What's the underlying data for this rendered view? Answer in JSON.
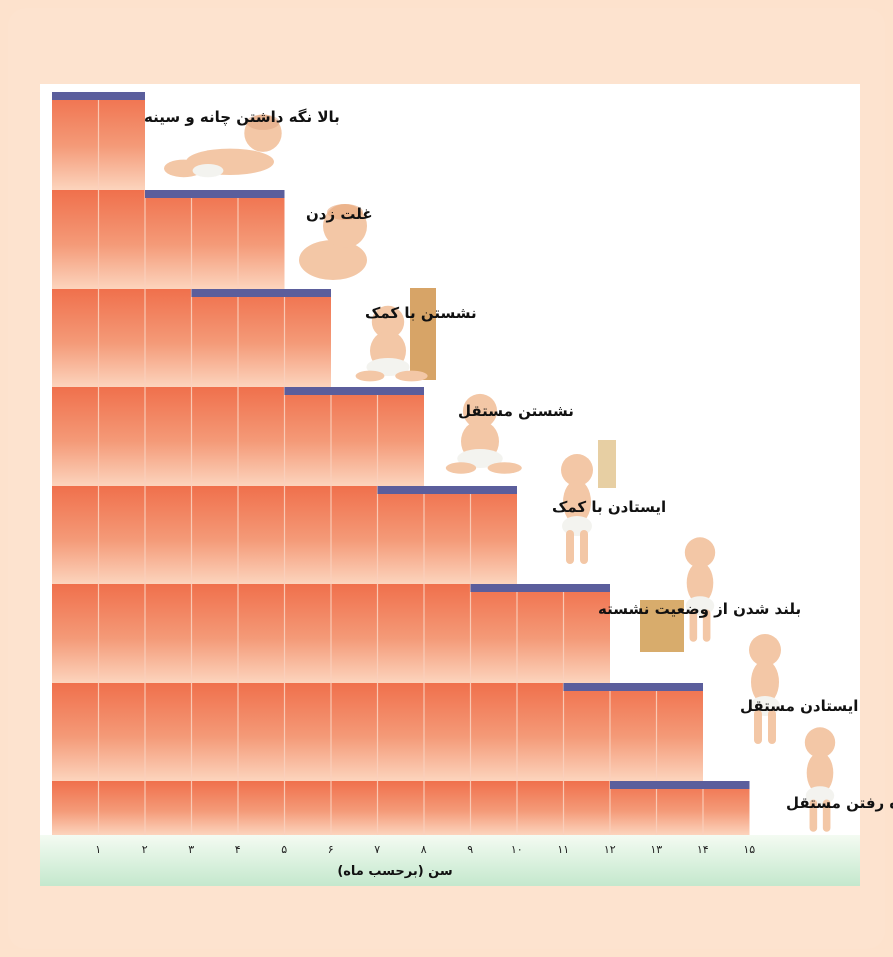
{
  "chart_data": {
    "type": "bar",
    "orientation": "horizontal-range",
    "xlabel": "سن (برحسب ماه)",
    "x_ticks": [
      "۱",
      "۲",
      "۳",
      "۴",
      "۵",
      "۶",
      "۷",
      "۸",
      "۹",
      "۱۰",
      "۱۱",
      "۱۲",
      "۱۳",
      "۱۴",
      "۱۵"
    ],
    "xlim": [
      0,
      15
    ],
    "stages": [
      {
        "label": "بالا نگه داشتن چانه و سینه",
        "start": 0,
        "end": 2
      },
      {
        "label": "غلت زدن",
        "start": 2,
        "end": 5
      },
      {
        "label": "نشستن با کمک",
        "start": 3,
        "end": 6
      },
      {
        "label": "نشستن مستقل",
        "start": 5,
        "end": 8
      },
      {
        "label": "ایستادن با کمک",
        "start": 7,
        "end": 10
      },
      {
        "label": "بلند شدن از وضعیت نشسته",
        "start": 9,
        "end": 12
      },
      {
        "label": "ایستادن مستقل",
        "start": 11,
        "end": 14
      },
      {
        "label": "راه رفتن مستقل",
        "start": 12,
        "end": 15
      }
    ],
    "colors": {
      "step_top": "#f0704c",
      "step_bottom": "#fcd4bd",
      "range_bar": "#5b5e9c",
      "axis_band_top": "#f4fbf2",
      "axis_band_bottom": "#c4e8cd"
    }
  }
}
